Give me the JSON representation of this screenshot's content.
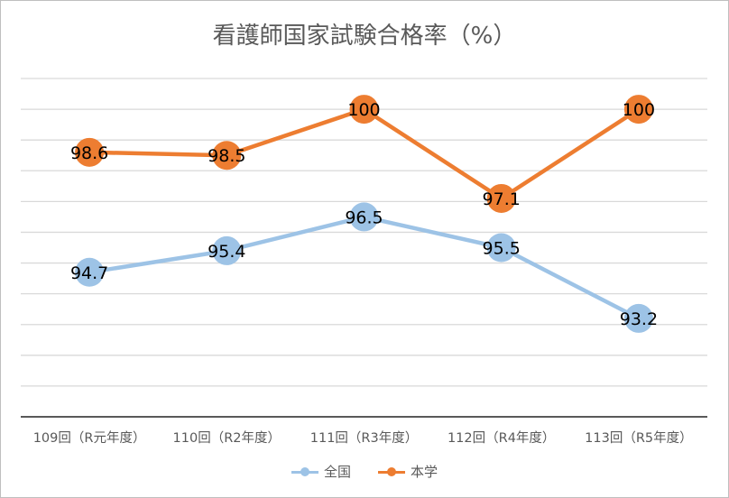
{
  "chart_data": {
    "type": "line",
    "title": "看護師国家試験合格率（%）",
    "categories": [
      "109回（R元年度）",
      "110回（R2年度）",
      "111回（R3年度）",
      "112回（R4年度）",
      "113回（R5年度）"
    ],
    "series": [
      {
        "name": "全国",
        "values": [
          94.7,
          95.4,
          96.5,
          95.5,
          93.2
        ],
        "labels": [
          "94.7",
          "95.4",
          "96.5",
          "95.5",
          "93.2"
        ],
        "color": "#9dc3e6"
      },
      {
        "name": "本学",
        "values": [
          98.6,
          98.5,
          100,
          97.1,
          100
        ],
        "labels": [
          "98.6",
          "98.5",
          "100",
          "97.1",
          "100"
        ],
        "color": "#ed7d31"
      }
    ],
    "ylim": [
      90,
      101
    ],
    "grid": true,
    "legend": "bottom",
    "data_labels": true
  }
}
